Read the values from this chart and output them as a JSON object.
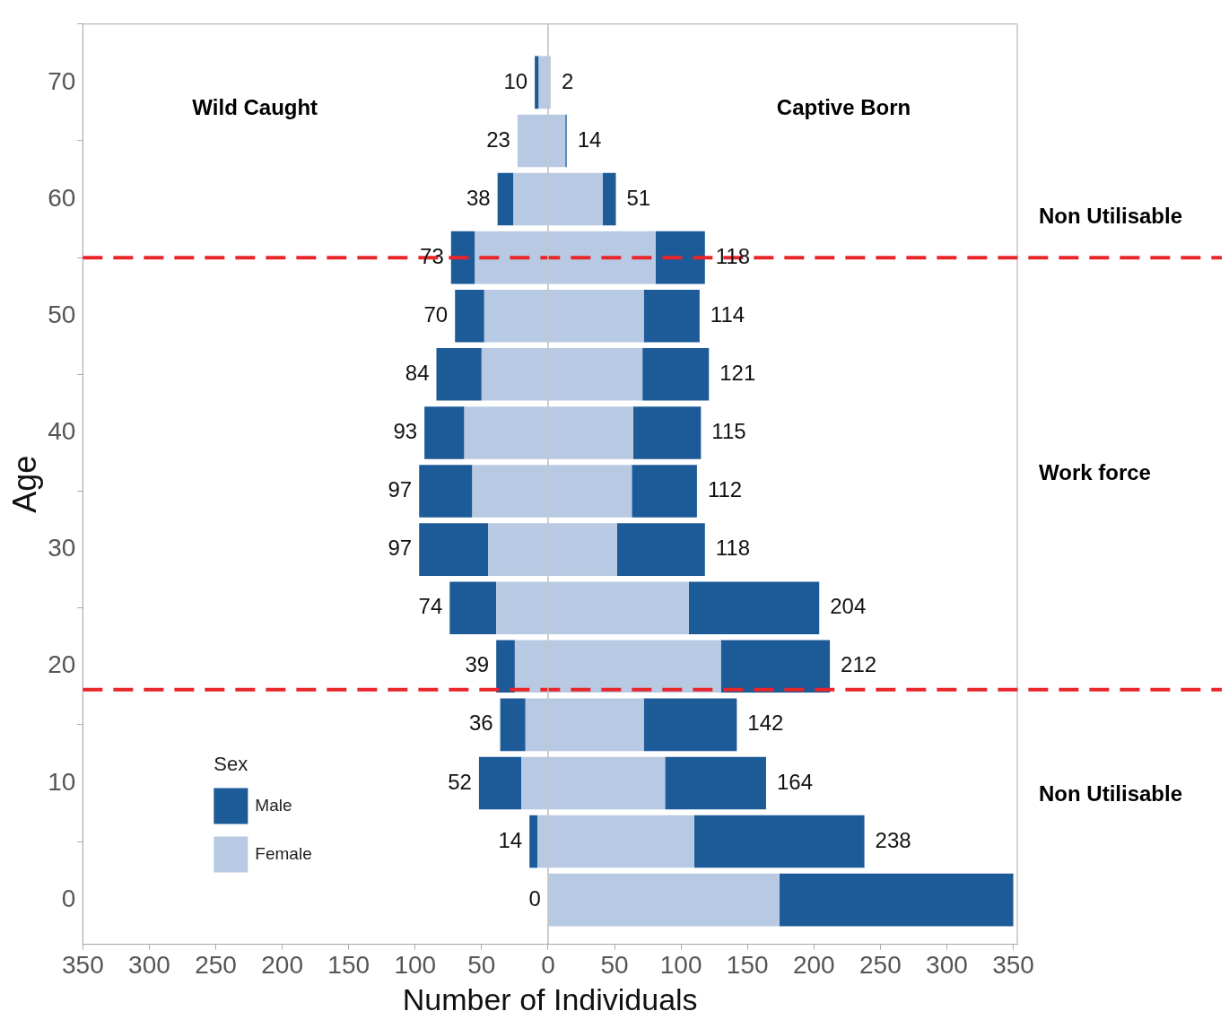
{
  "chart_data": {
    "type": "bar",
    "orientation": "horizontal",
    "stacked": true,
    "xlabel": "Number of Individuals",
    "ylabel": "Age",
    "legend_title": "Sex",
    "legend": "bottom left",
    "grid": false,
    "x": [
      0,
      5,
      10,
      15,
      20,
      25,
      30,
      35,
      40,
      45,
      50,
      55,
      60,
      65,
      70
    ],
    "series": [
      {
        "name": "Female",
        "color": "#b8cae3",
        "values": [
          0,
          -8,
          -20,
          -17,
          -25,
          -39,
          -45,
          -57,
          -63,
          -50,
          -48,
          -55,
          -26,
          -23,
          -7
        ]
      },
      {
        "name": "Male",
        "color": "#1d5a98",
        "values": [
          0,
          -6,
          -32,
          -19,
          -14,
          -35,
          -52,
          -40,
          -30,
          -34,
          -22,
          -18,
          -12,
          0,
          -3
        ]
      },
      {
        "color": "#b8cae3",
        "values": [
          174,
          110,
          88,
          72,
          130,
          106,
          52,
          63,
          64,
          71,
          72,
          81,
          41,
          13,
          2
        ]
      },
      {
        "color": "#1d5a98",
        "values": [
          176,
          128,
          76,
          70,
          82,
          98,
          66,
          49,
          51,
          50,
          42,
          37,
          10,
          1,
          0
        ]
      }
    ],
    "totals": [
      [
        "0",
        "14",
        "52",
        "36",
        "39",
        "74",
        "97",
        "97",
        "93",
        "84",
        "70",
        "73",
        "38",
        "23",
        "10"
      ],
      [
        null,
        "238",
        "164",
        "142",
        "212",
        "204",
        "118",
        "112",
        "115",
        "121",
        "114",
        "118",
        "51",
        "14",
        "2"
      ]
    ],
    "xlim": [
      -350,
      353
    ],
    "xticks": [
      {
        "value": -350,
        "label": "350"
      },
      {
        "value": -300,
        "label": "300"
      },
      {
        "value": -250,
        "label": "250"
      },
      {
        "value": -200,
        "label": "200"
      },
      {
        "value": -150,
        "label": "150"
      },
      {
        "value": -100,
        "label": "100"
      },
      {
        "value": -50,
        "label": "50"
      },
      0,
      50,
      100,
      150,
      200,
      250,
      300,
      350
    ],
    "ylim": [
      -3.8,
      75
    ],
    "yticks": [
      0,
      10,
      20,
      30,
      40,
      50,
      60,
      70
    ],
    "ref_lines": [
      {
        "axis": "y",
        "value": 55,
        "color": "#e8262a",
        "line_style": "dashed"
      },
      {
        "axis": "y",
        "value": 18,
        "color": "#e8262a",
        "line_style": "dashed"
      },
      {
        "axis": "x",
        "value": 0,
        "color": "#bdbdbd",
        "line_style": "solid"
      }
    ],
    "annotations": [
      "Wild Caught",
      "Captive Born",
      "Non Utilisable",
      "Work force",
      "Non Utilisable"
    ]
  }
}
